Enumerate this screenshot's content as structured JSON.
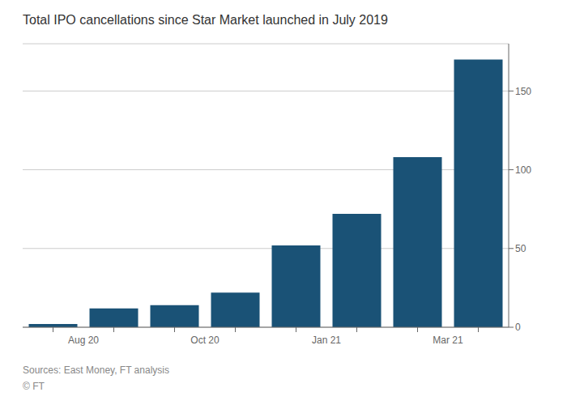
{
  "chart_data": {
    "type": "bar",
    "title": "Total IPO cancellations since Star Market launched in July 2019",
    "categories": [
      "Aug 20",
      null,
      "Oct 20",
      null,
      "Jan 21",
      null,
      "Mar 21",
      null
    ],
    "values": [
      2,
      12,
      14,
      22,
      52,
      72,
      108,
      170
    ],
    "color": "#1a5276",
    "ylim": [
      0,
      180
    ],
    "yticks": [
      0,
      50,
      100,
      150
    ],
    "grid": true,
    "annotations": [
      "Sources: East Money, FT analysis",
      "© FT"
    ]
  }
}
